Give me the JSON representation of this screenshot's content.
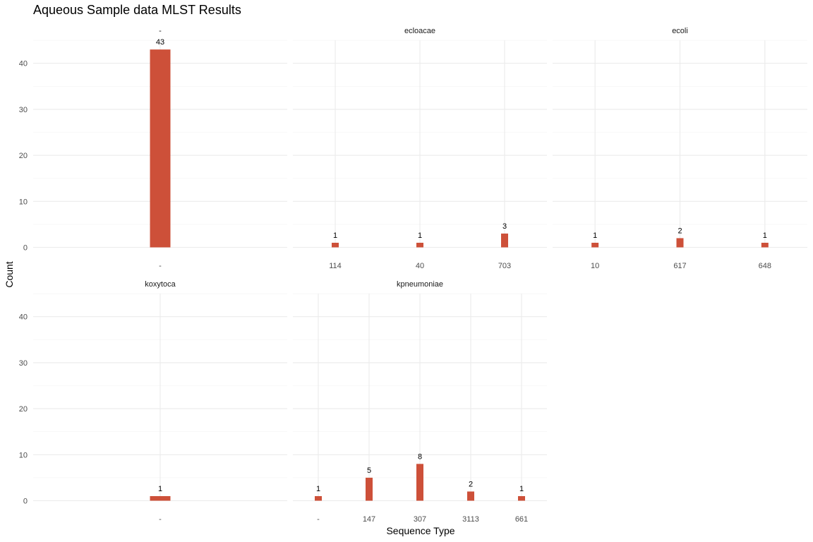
{
  "chart_data": {
    "type": "bar",
    "title": "Aqueous Sample data MLST Results",
    "xlabel": "Sequence Type",
    "ylabel": "Count",
    "ylim": [
      0,
      45
    ],
    "y_ticks": [
      0,
      10,
      20,
      30,
      40
    ],
    "grid": true,
    "bar_color": "#CD5039",
    "facets": [
      {
        "name": "-",
        "categories": [
          "-"
        ],
        "values": [
          43
        ]
      },
      {
        "name": "ecloacae",
        "categories": [
          "114",
          "40",
          "703"
        ],
        "values": [
          1,
          1,
          3
        ]
      },
      {
        "name": "ecoli",
        "categories": [
          "10",
          "617",
          "648"
        ],
        "values": [
          1,
          2,
          1
        ]
      },
      {
        "name": "koxytoca",
        "categories": [
          "-"
        ],
        "values": [
          1
        ]
      },
      {
        "name": "kpneumoniae",
        "categories": [
          "-",
          "147",
          "307",
          "3113",
          "661"
        ],
        "values": [
          1,
          5,
          8,
          2,
          1
        ]
      }
    ]
  }
}
